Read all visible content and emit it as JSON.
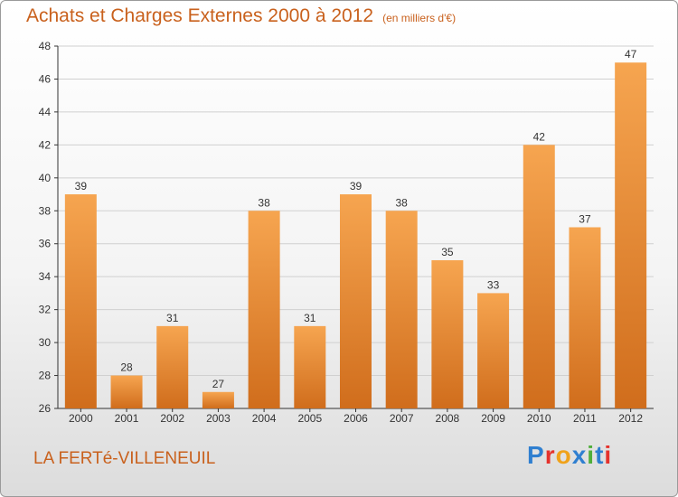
{
  "title": "Achats et Charges Externes 2000 à 2012",
  "unit_note": "(en milliers d'€)",
  "city": "LA FERTé-VILLENEUIL",
  "logo": {
    "text": "Proxiti",
    "letter_colors": [
      "#2f7fd0",
      "#e5322c",
      "#f0a21a",
      "#2f7fd0",
      "#4fae3a",
      "#2f7fd0",
      "#e5322c"
    ]
  },
  "colors": {
    "title": "#c9611d",
    "bar_top": "#f6a550",
    "bar_bottom": "#d06d1c",
    "axis": "#333333",
    "grid": "#d0d0d0"
  },
  "chart_data": {
    "type": "bar",
    "categories": [
      "2000",
      "2001",
      "2002",
      "2003",
      "2004",
      "2005",
      "2006",
      "2007",
      "2008",
      "2009",
      "2010",
      "2011",
      "2012"
    ],
    "values": [
      39,
      28,
      31,
      27,
      38,
      31,
      39,
      38,
      35,
      33,
      42,
      37,
      47
    ],
    "ylim": [
      26,
      48
    ],
    "yticks": [
      26,
      28,
      30,
      32,
      34,
      36,
      38,
      40,
      42,
      44,
      46,
      48
    ],
    "grid": true,
    "xlabel": "",
    "ylabel": ""
  }
}
